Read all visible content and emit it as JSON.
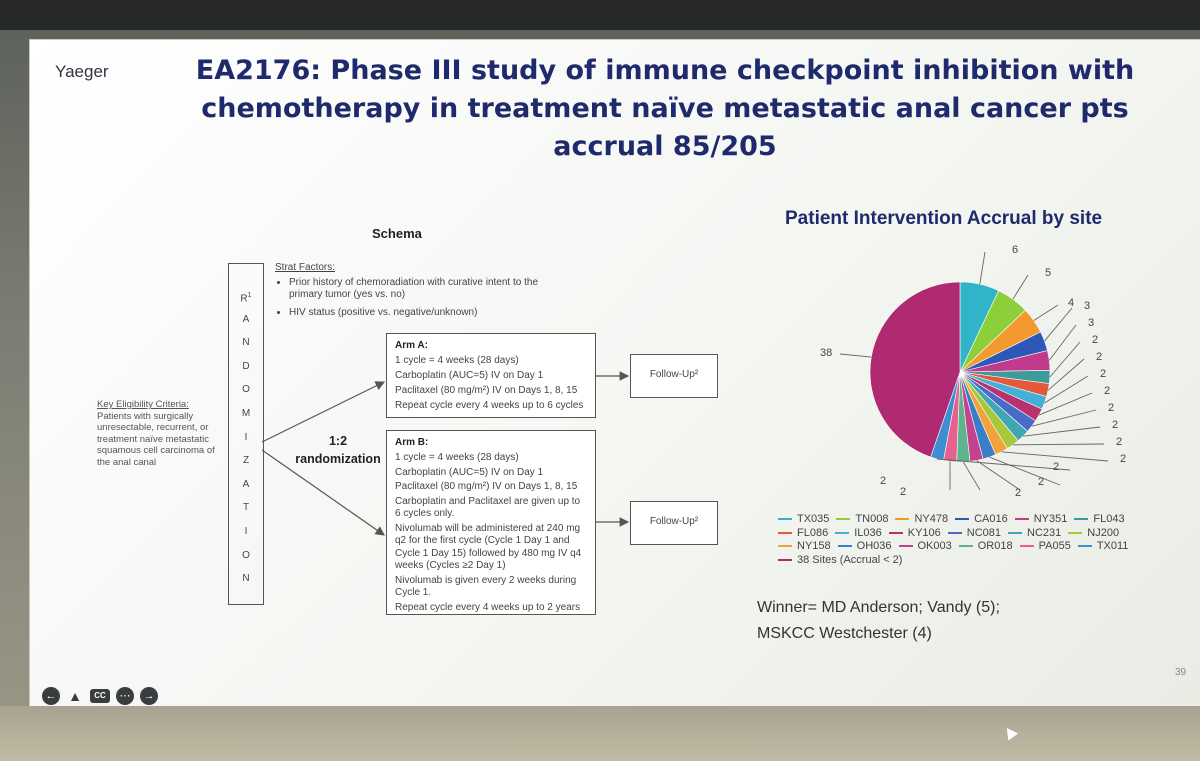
{
  "presenter": "Yaeger",
  "title": {
    "line1": "EA2176: Phase III study of immune checkpoint inhibition with",
    "line2": "chemotherapy in treatment naïve metastatic anal cancer pts",
    "line3": "accrual 85/205"
  },
  "schema": {
    "heading": "Schema",
    "randomization_letters": [
      "R",
      "A",
      "N",
      "D",
      "O",
      "M",
      "I",
      "Z",
      "A",
      "T",
      "I",
      "O",
      "N"
    ],
    "randomization_superscript": "1",
    "strat_heading": "Strat Factors:",
    "strat_items": [
      "Prior history of chemoradiation with curative intent to the primary tumor (yes vs. no)",
      "HIV status (positive vs. negative/unknown)"
    ],
    "eligibility_heading": "Key Eligibility Criteria:",
    "eligibility_text": "Patients with surgically unresectable, recurrent, or treatment naïve metastatic squamous cell carcinoma of the anal canal",
    "ratio": "1:2",
    "ratio_label": "randomization",
    "arm_a": {
      "title": "Arm A:",
      "lines": [
        "1 cycle = 4 weeks (28 days)",
        "Carboplatin (AUC=5) IV on Day 1",
        "Paclitaxel (80 mg/m²) IV on Days 1, 8, 15",
        "Repeat cycle every 4 weeks up to 6 cycles"
      ]
    },
    "arm_b": {
      "title": "Arm B:",
      "lines": [
        "1 cycle = 4 weeks (28 days)",
        "Carboplatin (AUC=5) IV on Day 1",
        "Paclitaxel (80 mg/m²) IV on Days 1, 8, 15",
        "Carboplatin and Paclitaxel are given up to 6 cycles only.",
        "Nivolumab will be administered at 240 mg q2 for the first cycle (Cycle 1 Day 1 and Cycle 1 Day 15) followed by 480 mg IV q4 weeks (Cycles ≥2 Day 1)",
        "Nivolumab is given every 2 weeks during Cycle 1.",
        "Repeat cycle every 4 weeks up to 2 years"
      ]
    },
    "follow_up": "Follow-Up²"
  },
  "chart_data": {
    "type": "pie",
    "title": "Patient Intervention Accrual by site",
    "categories": [
      "TX035",
      "TN008",
      "NY478",
      "CA016",
      "NY351",
      "FL043",
      "FL086",
      "IL036",
      "KY106",
      "NC081",
      "NC231",
      "NJ200",
      "NY158",
      "OH036",
      "OK003",
      "OR018",
      "PA055",
      "TX011",
      "38 Sites (Accrual < 2)"
    ],
    "values": [
      6,
      5,
      4,
      3,
      3,
      2,
      2,
      2,
      2,
      2,
      2,
      2,
      2,
      2,
      2,
      2,
      2,
      2,
      38
    ],
    "colors": [
      "#2fb4c8",
      "#8ccf3a",
      "#f39a2e",
      "#2e58b8",
      "#c23a8c",
      "#3f9a9a",
      "#e25a3a",
      "#45b0d6",
      "#b8326e",
      "#4a6ac8",
      "#3fa6b6",
      "#a6c83a",
      "#f2a23c",
      "#3a7ec8",
      "#c4428e",
      "#5eb48e",
      "#e8608c",
      "#3e8ed2",
      "#b02a72"
    ],
    "labels_shown": [
      "6",
      "5",
      "4",
      "3",
      "3",
      "2",
      "2",
      "2",
      "2",
      "2",
      "2",
      "2",
      "2",
      "2",
      "2",
      "2",
      "2",
      "2",
      "38"
    ]
  },
  "winner_line1": "Winner= MD Anderson; Vandy (5);",
  "winner_line2": "MSKCC Westchester (4)",
  "page_number": "39",
  "controls": [
    "back-icon",
    "annotate-icon",
    "cc",
    "more-icon",
    "forward-icon"
  ],
  "cc_label": "CC"
}
